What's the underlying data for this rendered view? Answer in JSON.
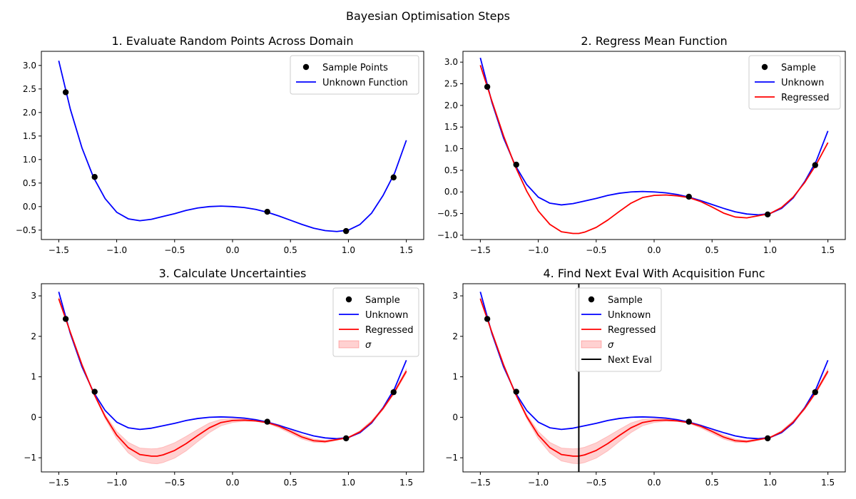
{
  "figure": {
    "title": "Bayesian Optimisation Steps"
  },
  "colors": {
    "unknown": "#0000ff",
    "regressed": "#ff0000",
    "sample": "#000000",
    "sigma_fill": "#ff0000",
    "next_eval": "#000000"
  },
  "chart_data": [
    {
      "type": "line",
      "title": "1. Evaluate Random Points Across Domain",
      "xlim": [
        -1.65,
        1.65
      ],
      "ylim": [
        -0.7,
        3.3
      ],
      "xticks": [
        -1.5,
        -1.0,
        -0.5,
        0.0,
        0.5,
        1.0,
        1.5
      ],
      "xtick_labels": [
        "−1.5",
        "−1.0",
        "−0.5",
        "0.0",
        "0.5",
        "1.0",
        "1.5"
      ],
      "yticks": [
        -0.5,
        0.0,
        0.5,
        1.0,
        1.5,
        2.0,
        2.5,
        3.0
      ],
      "ytick_labels": [
        "−0.5",
        "0.0",
        "0.5",
        "1.0",
        "1.5",
        "2.0",
        "2.5",
        "3.0"
      ],
      "legend_placement": "top-right",
      "legend": [
        {
          "label": "Sample Points",
          "kind": "marker"
        },
        {
          "label": "Unknown Function",
          "kind": "unknown"
        }
      ],
      "unknown": {
        "x": [
          -1.5,
          -1.4,
          -1.3,
          -1.2,
          -1.1,
          -1.0,
          -0.9,
          -0.8,
          -0.7,
          -0.6,
          -0.5,
          -0.4,
          -0.3,
          -0.2,
          -0.1,
          0.0,
          0.1,
          0.2,
          0.3,
          0.4,
          0.5,
          0.6,
          0.7,
          0.8,
          0.9,
          1.0,
          1.1,
          1.2,
          1.3,
          1.4,
          1.5
        ],
        "y": [
          3.1,
          2.07,
          1.25,
          0.62,
          0.17,
          -0.12,
          -0.26,
          -0.3,
          -0.27,
          -0.21,
          -0.15,
          -0.08,
          -0.03,
          0.0,
          0.01,
          0.0,
          -0.02,
          -0.06,
          -0.12,
          -0.2,
          -0.29,
          -0.38,
          -0.46,
          -0.51,
          -0.53,
          -0.5,
          -0.38,
          -0.14,
          0.24,
          0.72,
          1.41
        ]
      },
      "samples": {
        "x": [
          -1.44,
          -1.19,
          0.3,
          0.98,
          1.39
        ],
        "y": [
          2.43,
          0.63,
          -0.11,
          -0.52,
          0.62
        ]
      }
    },
    {
      "type": "line",
      "title": "2. Regress Mean Function",
      "xlim": [
        -1.65,
        1.65
      ],
      "ylim": [
        -1.1,
        3.25
      ],
      "xticks": [
        -1.5,
        -1.0,
        -0.5,
        0.0,
        0.5,
        1.0,
        1.5
      ],
      "xtick_labels": [
        "−1.5",
        "−1.0",
        "−0.5",
        "0.0",
        "0.5",
        "1.0",
        "1.5"
      ],
      "yticks": [
        -1.0,
        -0.5,
        0.0,
        0.5,
        1.0,
        1.5,
        2.0,
        2.5,
        3.0
      ],
      "ytick_labels": [
        "−1.0",
        "−0.5",
        "0.0",
        "0.5",
        "1.0",
        "1.5",
        "2.0",
        "2.5",
        "3.0"
      ],
      "legend_placement": "top-right",
      "legend": [
        {
          "label": "Sample",
          "kind": "marker"
        },
        {
          "label": "Unknown",
          "kind": "unknown"
        },
        {
          "label": "Regressed",
          "kind": "regressed"
        }
      ],
      "unknown": {
        "x": [
          -1.5,
          -1.4,
          -1.3,
          -1.2,
          -1.1,
          -1.0,
          -0.9,
          -0.8,
          -0.7,
          -0.6,
          -0.5,
          -0.4,
          -0.3,
          -0.2,
          -0.1,
          0.0,
          0.1,
          0.2,
          0.3,
          0.4,
          0.5,
          0.6,
          0.7,
          0.8,
          0.9,
          1.0,
          1.1,
          1.2,
          1.3,
          1.4,
          1.5
        ],
        "y": [
          3.1,
          2.07,
          1.25,
          0.62,
          0.17,
          -0.12,
          -0.26,
          -0.3,
          -0.27,
          -0.21,
          -0.15,
          -0.08,
          -0.03,
          0.0,
          0.01,
          0.0,
          -0.02,
          -0.06,
          -0.12,
          -0.2,
          -0.29,
          -0.38,
          -0.46,
          -0.51,
          -0.53,
          -0.5,
          -0.38,
          -0.14,
          0.24,
          0.72,
          1.41
        ]
      },
      "regressed": {
        "x": [
          -1.5,
          -1.4,
          -1.3,
          -1.2,
          -1.1,
          -1.0,
          -0.9,
          -0.8,
          -0.7,
          -0.65,
          -0.6,
          -0.5,
          -0.4,
          -0.3,
          -0.2,
          -0.1,
          0.0,
          0.1,
          0.2,
          0.3,
          0.4,
          0.5,
          0.6,
          0.7,
          0.8,
          0.9,
          1.0,
          1.1,
          1.2,
          1.3,
          1.4,
          1.5
        ],
        "y": [
          2.93,
          2.1,
          1.3,
          0.6,
          0.02,
          -0.44,
          -0.75,
          -0.92,
          -0.96,
          -0.96,
          -0.93,
          -0.82,
          -0.65,
          -0.45,
          -0.26,
          -0.13,
          -0.08,
          -0.07,
          -0.09,
          -0.13,
          -0.22,
          -0.35,
          -0.49,
          -0.58,
          -0.6,
          -0.55,
          -0.5,
          -0.36,
          -0.12,
          0.22,
          0.64,
          1.14
        ]
      },
      "samples": {
        "x": [
          -1.44,
          -1.19,
          0.3,
          0.98,
          1.39
        ],
        "y": [
          2.43,
          0.63,
          -0.11,
          -0.52,
          0.62
        ]
      }
    },
    {
      "type": "line",
      "title": "3. Calculate Uncertainties",
      "xlim": [
        -1.65,
        1.65
      ],
      "ylim": [
        -1.35,
        3.3
      ],
      "xticks": [
        -1.5,
        -1.0,
        -0.5,
        0.0,
        0.5,
        1.0,
        1.5
      ],
      "xtick_labels": [
        "−1.5",
        "−1.0",
        "−0.5",
        "0.0",
        "0.5",
        "1.0",
        "1.5"
      ],
      "yticks": [
        -1,
        0,
        1,
        2,
        3
      ],
      "ytick_labels": [
        "−1",
        "0",
        "1",
        "2",
        "3"
      ],
      "legend_placement": "top-right",
      "legend": [
        {
          "label": "Sample",
          "kind": "marker"
        },
        {
          "label": "Unknown",
          "kind": "unknown"
        },
        {
          "label": "Regressed",
          "kind": "regressed"
        },
        {
          "label": "σ",
          "kind": "band"
        }
      ],
      "unknown": {
        "x": [
          -1.5,
          -1.4,
          -1.3,
          -1.2,
          -1.1,
          -1.0,
          -0.9,
          -0.8,
          -0.7,
          -0.6,
          -0.5,
          -0.4,
          -0.3,
          -0.2,
          -0.1,
          0.0,
          0.1,
          0.2,
          0.3,
          0.4,
          0.5,
          0.6,
          0.7,
          0.8,
          0.9,
          1.0,
          1.1,
          1.2,
          1.3,
          1.4,
          1.5
        ],
        "y": [
          3.1,
          2.07,
          1.25,
          0.62,
          0.17,
          -0.12,
          -0.26,
          -0.3,
          -0.27,
          -0.21,
          -0.15,
          -0.08,
          -0.03,
          0.0,
          0.01,
          0.0,
          -0.02,
          -0.06,
          -0.12,
          -0.2,
          -0.29,
          -0.38,
          -0.46,
          -0.51,
          -0.53,
          -0.5,
          -0.38,
          -0.14,
          0.24,
          0.72,
          1.41
        ]
      },
      "regressed": {
        "x": [
          -1.5,
          -1.4,
          -1.3,
          -1.2,
          -1.1,
          -1.0,
          -0.9,
          -0.8,
          -0.7,
          -0.65,
          -0.6,
          -0.5,
          -0.4,
          -0.3,
          -0.2,
          -0.1,
          0.0,
          0.1,
          0.2,
          0.3,
          0.4,
          0.5,
          0.6,
          0.7,
          0.8,
          0.9,
          1.0,
          1.1,
          1.2,
          1.3,
          1.4,
          1.5
        ],
        "y": [
          2.93,
          2.1,
          1.3,
          0.6,
          0.02,
          -0.44,
          -0.75,
          -0.92,
          -0.96,
          -0.96,
          -0.93,
          -0.82,
          -0.65,
          -0.45,
          -0.26,
          -0.13,
          -0.08,
          -0.07,
          -0.09,
          -0.13,
          -0.22,
          -0.35,
          -0.49,
          -0.58,
          -0.6,
          -0.55,
          -0.5,
          -0.36,
          -0.12,
          0.22,
          0.64,
          1.14
        ]
      },
      "sigma": [
        0.04,
        0.02,
        0.03,
        0.02,
        0.05,
        0.09,
        0.13,
        0.16,
        0.18,
        0.19,
        0.19,
        0.19,
        0.18,
        0.15,
        0.12,
        0.08,
        0.05,
        0.03,
        0.01,
        0.02,
        0.04,
        0.05,
        0.05,
        0.04,
        0.03,
        0.02,
        0.01,
        0.03,
        0.04,
        0.03,
        0.04,
        0.05
      ],
      "samples": {
        "x": [
          -1.44,
          -1.19,
          0.3,
          0.98,
          1.39
        ],
        "y": [
          2.43,
          0.63,
          -0.11,
          -0.52,
          0.62
        ]
      }
    },
    {
      "type": "line",
      "title": "4. Find Next Eval With Acquisition Func",
      "xlim": [
        -1.65,
        1.65
      ],
      "ylim": [
        -1.35,
        3.3
      ],
      "xticks": [
        -1.5,
        -1.0,
        -0.5,
        0.0,
        0.5,
        1.0,
        1.5
      ],
      "xtick_labels": [
        "−1.5",
        "−1.0",
        "−0.5",
        "0.0",
        "0.5",
        "1.0",
        "1.5"
      ],
      "yticks": [
        -1,
        0,
        1,
        2,
        3
      ],
      "ytick_labels": [
        "−1",
        "0",
        "1",
        "2",
        "3"
      ],
      "legend_placement": "upper center",
      "legend": [
        {
          "label": "Sample",
          "kind": "marker"
        },
        {
          "label": "Unknown",
          "kind": "unknown"
        },
        {
          "label": "Regressed",
          "kind": "regressed"
        },
        {
          "label": "σ",
          "kind": "band"
        },
        {
          "label": "Next Eval",
          "kind": "nexteval"
        }
      ],
      "unknown": {
        "x": [
          -1.5,
          -1.4,
          -1.3,
          -1.2,
          -1.1,
          -1.0,
          -0.9,
          -0.8,
          -0.7,
          -0.6,
          -0.5,
          -0.4,
          -0.3,
          -0.2,
          -0.1,
          0.0,
          0.1,
          0.2,
          0.3,
          0.4,
          0.5,
          0.6,
          0.7,
          0.8,
          0.9,
          1.0,
          1.1,
          1.2,
          1.3,
          1.4,
          1.5
        ],
        "y": [
          3.1,
          2.07,
          1.25,
          0.62,
          0.17,
          -0.12,
          -0.26,
          -0.3,
          -0.27,
          -0.21,
          -0.15,
          -0.08,
          -0.03,
          0.0,
          0.01,
          0.0,
          -0.02,
          -0.06,
          -0.12,
          -0.2,
          -0.29,
          -0.38,
          -0.46,
          -0.51,
          -0.53,
          -0.5,
          -0.38,
          -0.14,
          0.24,
          0.72,
          1.41
        ]
      },
      "regressed": {
        "x": [
          -1.5,
          -1.4,
          -1.3,
          -1.2,
          -1.1,
          -1.0,
          -0.9,
          -0.8,
          -0.7,
          -0.65,
          -0.6,
          -0.5,
          -0.4,
          -0.3,
          -0.2,
          -0.1,
          0.0,
          0.1,
          0.2,
          0.3,
          0.4,
          0.5,
          0.6,
          0.7,
          0.8,
          0.9,
          1.0,
          1.1,
          1.2,
          1.3,
          1.4,
          1.5
        ],
        "y": [
          2.93,
          2.1,
          1.3,
          0.6,
          0.02,
          -0.44,
          -0.75,
          -0.92,
          -0.96,
          -0.96,
          -0.93,
          -0.82,
          -0.65,
          -0.45,
          -0.26,
          -0.13,
          -0.08,
          -0.07,
          -0.09,
          -0.13,
          -0.22,
          -0.35,
          -0.49,
          -0.58,
          -0.6,
          -0.55,
          -0.5,
          -0.36,
          -0.12,
          0.22,
          0.64,
          1.14
        ]
      },
      "sigma": [
        0.04,
        0.02,
        0.03,
        0.02,
        0.05,
        0.09,
        0.13,
        0.16,
        0.18,
        0.19,
        0.19,
        0.19,
        0.18,
        0.15,
        0.12,
        0.08,
        0.05,
        0.03,
        0.01,
        0.02,
        0.04,
        0.05,
        0.05,
        0.04,
        0.03,
        0.02,
        0.01,
        0.03,
        0.04,
        0.03,
        0.04,
        0.05
      ],
      "next_eval_x": -0.65,
      "samples": {
        "x": [
          -1.44,
          -1.19,
          0.3,
          0.98,
          1.39
        ],
        "y": [
          2.43,
          0.63,
          -0.11,
          -0.52,
          0.62
        ]
      }
    }
  ]
}
